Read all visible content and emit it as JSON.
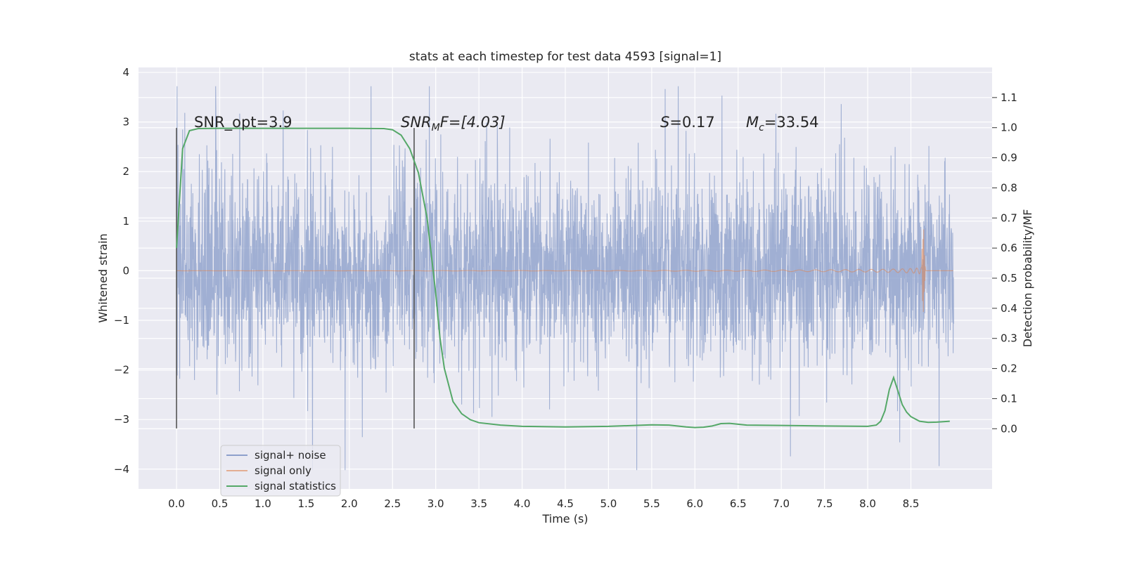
{
  "chart_data": {
    "type": "line",
    "title": "stats at each timestep for test data 4593 [signal=1]",
    "xlabel": "Time (s)",
    "ylabel": "Whitened strain",
    "y2label": "Detection probability/MF",
    "xlim": [
      -0.44,
      9.44
    ],
    "ylim": [
      -4.4,
      4.1
    ],
    "y2lim": [
      -0.2,
      1.2
    ],
    "xticks": [
      "0.0",
      "0.5",
      "1.0",
      "1.5",
      "2.0",
      "2.5",
      "3.0",
      "3.5",
      "4.0",
      "4.5",
      "5.0",
      "5.5",
      "6.0",
      "6.5",
      "7.0",
      "7.5",
      "8.0",
      "8.5"
    ],
    "yticks": [
      -4,
      -3,
      -2,
      -1,
      0,
      1,
      2,
      3,
      4
    ],
    "yticklabels": [
      "−4",
      "−3",
      "−2",
      "−1",
      "0",
      "1",
      "2",
      "3",
      "4"
    ],
    "y2ticks": [
      0.0,
      0.1,
      0.2,
      0.3,
      0.4,
      0.5,
      0.6,
      0.7,
      0.8,
      0.9,
      1.0,
      1.1
    ],
    "y2ticklabels": [
      "0.0",
      "0.1",
      "0.2",
      "0.3",
      "0.4",
      "0.5",
      "0.6",
      "0.7",
      "0.8",
      "0.9",
      "1.0",
      "1.1"
    ],
    "grid": true,
    "legend": {
      "placement": "lower-left",
      "entries": [
        {
          "label": "signal+ noise",
          "color": "#8da0cb"
        },
        {
          "label": "signal only",
          "color": "#dd8452"
        },
        {
          "label": "signal statistics",
          "color": "#55a868"
        }
      ]
    },
    "annotations": {
      "snr_opt": "SNR_opt=3.9",
      "snr_mf_base": "SNR",
      "snr_mf_sub": "M",
      "snr_mf_rest": "F=[4.03]",
      "s_var": "S",
      "s_val": "=0.17",
      "mc_var": "M",
      "mc_sub": "c",
      "mc_val": "=33.54"
    },
    "vlines": [
      {
        "x": 0.0,
        "ymin": -3.18,
        "ymax": 2.88
      },
      {
        "x": 2.75,
        "ymin": -3.18,
        "ymax": 2.88
      }
    ],
    "series": [
      {
        "name": "signal+ noise",
        "color": "#8da0cb",
        "t_start": 0.0,
        "t_end": 8.995,
        "envelope": {
          "typical": 1.6,
          "max": 3.72,
          "min": -4.02
        }
      },
      {
        "name": "signal only",
        "color": "#dd8452",
        "t_start": 0.0,
        "t_end": 8.99,
        "merger_time": 8.65,
        "peak": [
          0.87,
          -0.98
        ]
      },
      {
        "name": "signal statistics",
        "color": "#55a868",
        "axis": "right",
        "x": [
          0.0,
          0.07,
          0.15,
          0.25,
          0.5,
          1.0,
          1.5,
          2.0,
          2.4,
          2.5,
          2.6,
          2.7,
          2.8,
          2.9,
          3.0,
          3.05,
          3.1,
          3.2,
          3.3,
          3.4,
          3.5,
          3.75,
          4.0,
          4.5,
          5.0,
          5.3,
          5.5,
          5.7,
          5.9,
          6.0,
          6.1,
          6.2,
          6.3,
          6.4,
          6.6,
          7.0,
          7.5,
          8.0,
          8.1,
          8.15,
          8.2,
          8.25,
          8.3,
          8.35,
          8.4,
          8.45,
          8.5,
          8.6,
          8.7,
          8.8,
          8.95
        ],
        "values": [
          0.6,
          0.93,
          0.99,
          0.997,
          0.998,
          0.998,
          0.998,
          0.998,
          0.997,
          0.993,
          0.975,
          0.93,
          0.85,
          0.7,
          0.45,
          0.3,
          0.2,
          0.09,
          0.05,
          0.03,
          0.02,
          0.012,
          0.008,
          0.006,
          0.008,
          0.011,
          0.013,
          0.012,
          0.006,
          0.004,
          0.005,
          0.009,
          0.017,
          0.018,
          0.012,
          0.011,
          0.009,
          0.008,
          0.012,
          0.025,
          0.06,
          0.13,
          0.17,
          0.125,
          0.08,
          0.055,
          0.04,
          0.025,
          0.021,
          0.022,
          0.025
        ]
      }
    ]
  }
}
